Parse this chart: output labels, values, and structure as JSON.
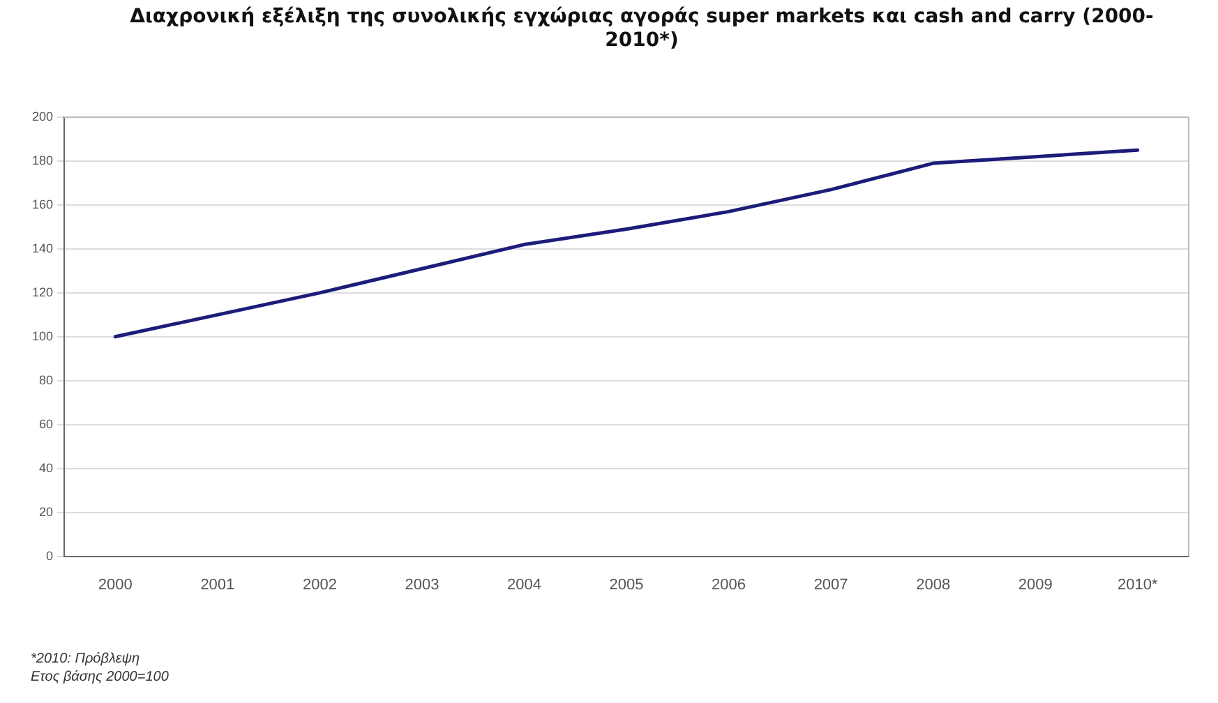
{
  "chart_data": {
    "type": "line",
    "title": "Διαχρονική εξέλιξη της συνολικής εγχώριας αγοράς super markets και cash and carry (2000-2010*)",
    "categories": [
      "2000",
      "2001",
      "2002",
      "2003",
      "2004",
      "2005",
      "2006",
      "2007",
      "2008",
      "2009",
      "2010*"
    ],
    "series": [
      {
        "color": "#1c1c7a",
        "values": [
          100,
          110,
          120,
          131,
          142,
          149,
          157,
          167,
          179,
          182,
          185
        ]
      }
    ],
    "ylim": [
      0,
      200
    ],
    "yticks": [
      0,
      20,
      40,
      60,
      80,
      100,
      120,
      140,
      160,
      180,
      200
    ],
    "grid": "y",
    "legend": false,
    "marker": "none",
    "line_style": "solid",
    "annotations": [
      "*2010: Πρόβλεψη",
      "Ετος βάσης 2000=100"
    ]
  }
}
